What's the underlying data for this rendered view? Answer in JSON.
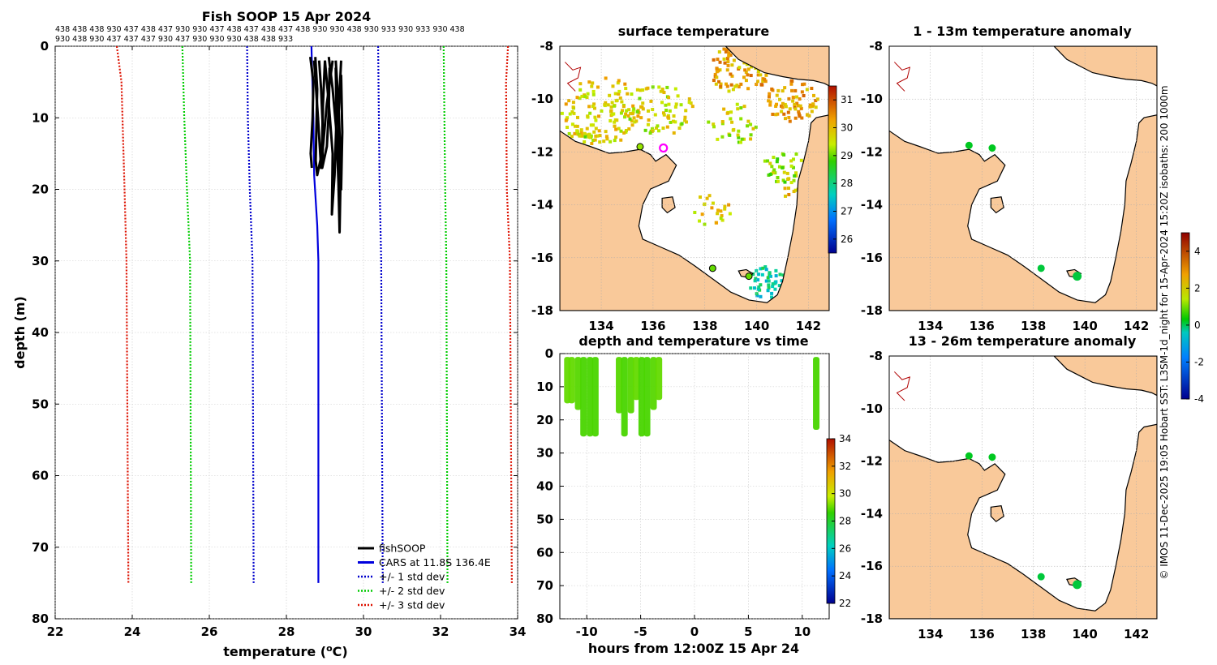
{
  "figure": {
    "credit": "© IMOS 11-Dec-2025 19:05 Hobart SST: L3SM-1d_night for 15-Apr-2024 15:20Z isobaths: 200  1000m"
  },
  "colors": {
    "fish": "#000000",
    "cars": "#0000dd",
    "std1": "#0000cc",
    "std2": "#00cc00",
    "std3": "#dd1100",
    "land": "#f9c99a",
    "grid": "#c8c8c8"
  },
  "chart_data": [
    {
      "id": "profile",
      "type": "line",
      "title": "Fish SOOP 15 Apr 2024",
      "xlabel": "temperature (°C)",
      "ylabel": "depth (m)",
      "xlim": [
        22,
        34
      ],
      "ylim": [
        0,
        80
      ],
      "xticks": [
        "22",
        "24",
        "26",
        "28",
        "30",
        "32",
        "34"
      ],
      "yticks": [
        "0",
        "10",
        "20",
        "30",
        "40",
        "50",
        "60",
        "70",
        "80"
      ],
      "header_line1": "438 438 438 930 437 438 437 930 930 437 438 437 438 437 438 930 930 438 930 933 930 933 930 438",
      "header_line2": "930 438 930 437 437 437 930 437 930 930 930 438 438 933",
      "legend": [
        {
          "label": "fishSOOP",
          "style": "solid",
          "color": "#000000"
        },
        {
          "label": "CARS at 11.8S 136.4E",
          "style": "solid",
          "color": "#0000dd"
        },
        {
          "label": "+/- 1 std dev",
          "style": "dotted",
          "color": "#0000cc"
        },
        {
          "label": "+/- 2 std dev",
          "style": "dotted",
          "color": "#00cc00"
        },
        {
          "label": "+/- 3 std dev",
          "style": "dotted",
          "color": "#dd1100"
        }
      ],
      "series": [
        {
          "name": "CARS",
          "depth": [
            0,
            10,
            18,
            25,
            30,
            75
          ],
          "temp": [
            28.65,
            28.7,
            28.72,
            28.8,
            28.83,
            28.83
          ]
        },
        {
          "name": "+1 std",
          "depth": [
            0,
            10,
            20,
            30,
            75
          ],
          "temp": [
            30.38,
            30.4,
            30.42,
            30.46,
            30.5
          ]
        },
        {
          "name": "-1 std",
          "depth": [
            0,
            10,
            20,
            30,
            75
          ],
          "temp": [
            26.98,
            27.0,
            27.05,
            27.12,
            27.15
          ]
        },
        {
          "name": "+2 std",
          "depth": [
            0,
            10,
            20,
            30,
            75
          ],
          "temp": [
            32.08,
            32.1,
            32.12,
            32.15,
            32.18
          ]
        },
        {
          "name": "-2 std",
          "depth": [
            0,
            10,
            20,
            30,
            75
          ],
          "temp": [
            25.3,
            25.35,
            25.42,
            25.5,
            25.53
          ]
        },
        {
          "name": "+3 std",
          "depth": [
            0,
            5,
            20,
            30,
            75
          ],
          "temp": [
            33.75,
            33.7,
            33.72,
            33.8,
            33.85
          ]
        },
        {
          "name": "-3 std",
          "depth": [
            0,
            5,
            20,
            30,
            75
          ],
          "temp": [
            23.6,
            23.72,
            23.8,
            23.85,
            23.9
          ]
        }
      ],
      "fish_casts": [
        {
          "depth": [
            1.5,
            5,
            10,
            15,
            17
          ],
          "temp": [
            28.62,
            28.7,
            28.68,
            28.63,
            28.66
          ]
        },
        {
          "depth": [
            1.5,
            6,
            11,
            16,
            18,
            15,
            8,
            2
          ],
          "temp": [
            28.75,
            28.8,
            28.78,
            28.76,
            28.8,
            28.92,
            28.95,
            29.0
          ]
        },
        {
          "depth": [
            2,
            6,
            12,
            17,
            14,
            9,
            3
          ],
          "temp": [
            28.85,
            28.9,
            28.95,
            28.93,
            29.05,
            29.1,
            29.12
          ]
        },
        {
          "depth": [
            2,
            8,
            15,
            23.5,
            18,
            10,
            3
          ],
          "temp": [
            29.0,
            29.1,
            29.2,
            29.18,
            29.25,
            29.3,
            29.28
          ]
        },
        {
          "depth": [
            1.5,
            6,
            12,
            19,
            26,
            20,
            10,
            2
          ],
          "temp": [
            29.1,
            29.2,
            29.3,
            29.35,
            29.38,
            29.4,
            29.35,
            29.42
          ]
        },
        {
          "depth": [
            2,
            8,
            15,
            20,
            12,
            4
          ],
          "temp": [
            29.28,
            29.35,
            29.4,
            29.42,
            29.45,
            29.42
          ]
        },
        {
          "depth": [
            2,
            10,
            17,
            8,
            2
          ],
          "temp": [
            28.72,
            28.82,
            28.9,
            29.05,
            29.2
          ]
        }
      ]
    },
    {
      "id": "sst_map",
      "type": "heatmap",
      "title": "surface temperature",
      "xlim": [
        132.4,
        142.8
      ],
      "ylim": [
        -18,
        -8
      ],
      "xticks": [
        "134",
        "136",
        "138",
        "140",
        "142"
      ],
      "yticks": [
        "-8",
        "-10",
        "-12",
        "-14",
        "-16",
        "-18"
      ],
      "colorbar": {
        "min": 25.5,
        "max": 31.5,
        "ticks": [
          "26",
          "27",
          "28",
          "29",
          "30",
          "31"
        ]
      },
      "stations": [
        {
          "lon": 135.5,
          "lat": -11.8,
          "temp": 29.2
        },
        {
          "lon": 136.4,
          "lat": -11.85,
          "temp": 29.2,
          "highlight": true
        },
        {
          "lon": 138.3,
          "lat": -16.4,
          "temp": 29.0
        },
        {
          "lon": 139.7,
          "lat": -16.7,
          "temp": 29.0
        }
      ]
    },
    {
      "id": "anom_1_13",
      "type": "scatter",
      "title": "1 - 13m temperature anomaly",
      "xlim": [
        132.4,
        142.8
      ],
      "ylim": [
        -18,
        -8
      ],
      "xticks": [
        "134",
        "136",
        "138",
        "140",
        "142"
      ],
      "yticks": [
        "-8",
        "-10",
        "-12",
        "-14",
        "-16",
        "-18"
      ],
      "points": [
        {
          "lon": 135.5,
          "lat": -11.75,
          "anomaly": 0.2
        },
        {
          "lon": 136.4,
          "lat": -11.85,
          "anomaly": 0.2
        },
        {
          "lon": 138.3,
          "lat": -16.4,
          "anomaly": 0.1
        },
        {
          "lon": 139.7,
          "lat": -16.7,
          "anomaly": 0.1
        }
      ]
    },
    {
      "id": "anom_13_26",
      "type": "scatter",
      "title": "13 - 26m temperature anomaly",
      "xlim": [
        132.4,
        142.8
      ],
      "ylim": [
        -18,
        -8
      ],
      "xticks": [
        "134",
        "136",
        "138",
        "140",
        "142"
      ],
      "yticks": [
        "-8",
        "-10",
        "-12",
        "-14",
        "-16",
        "-18"
      ],
      "points": [
        {
          "lon": 135.5,
          "lat": -11.8,
          "anomaly": 0.2
        },
        {
          "lon": 136.4,
          "lat": -11.85,
          "anomaly": 0.2
        },
        {
          "lon": 138.3,
          "lat": -16.4,
          "anomaly": 0.1
        },
        {
          "lon": 139.7,
          "lat": -16.7,
          "anomaly": 0.1
        }
      ]
    },
    {
      "id": "anom_colorbar",
      "type": "colorbar",
      "min": -4,
      "max": 5,
      "ticks": [
        "4",
        "2",
        "0",
        "-2",
        "-4"
      ]
    },
    {
      "id": "time_depth",
      "type": "scatter",
      "title": "depth and temperature vs time",
      "xlabel": "hours from 12:00Z 15 Apr 24",
      "xlim": [
        -12.5,
        12.5
      ],
      "ylim": [
        0,
        80
      ],
      "xticks": [
        "-10",
        "-5",
        "0",
        "5",
        "10"
      ],
      "yticks": [
        "0",
        "10",
        "20",
        "30",
        "40",
        "50",
        "60",
        "70",
        "80"
      ],
      "colorbar": {
        "min": 22,
        "max": 34,
        "ticks": [
          "34",
          "32",
          "30",
          "28",
          "26",
          "24",
          "22"
        ]
      },
      "casts": [
        {
          "t": -11.8,
          "dmax": 15,
          "temp": 29.0
        },
        {
          "t": -11.4,
          "dmax": 15,
          "temp": 29.0
        },
        {
          "t": -10.8,
          "dmax": 17,
          "temp": 28.9
        },
        {
          "t": -10.3,
          "dmax": 25,
          "temp": 28.8
        },
        {
          "t": -9.7,
          "dmax": 25,
          "temp": 28.8
        },
        {
          "t": -9.2,
          "dmax": 25,
          "temp": 28.8
        },
        {
          "t": -7.0,
          "dmax": 18,
          "temp": 28.9
        },
        {
          "t": -6.5,
          "dmax": 25,
          "temp": 28.8
        },
        {
          "t": -5.9,
          "dmax": 18,
          "temp": 28.9
        },
        {
          "t": -5.4,
          "dmax": 14,
          "temp": 29.0
        },
        {
          "t": -4.9,
          "dmax": 25,
          "temp": 28.8
        },
        {
          "t": -4.4,
          "dmax": 25,
          "temp": 28.8
        },
        {
          "t": -3.8,
          "dmax": 17,
          "temp": 28.9
        },
        {
          "t": -3.3,
          "dmax": 14,
          "temp": 29.0
        },
        {
          "t": 11.3,
          "dmax": 23,
          "temp": 28.8
        }
      ]
    }
  ]
}
